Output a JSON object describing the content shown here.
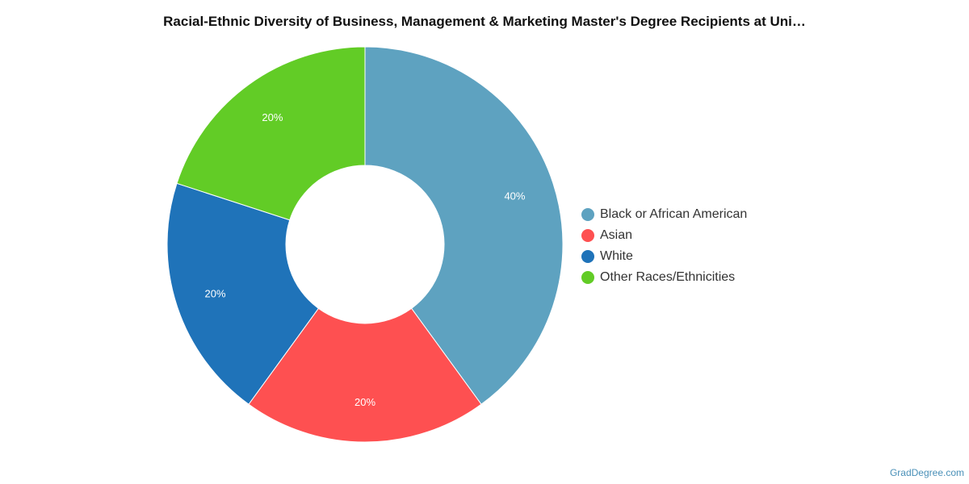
{
  "chart_data": {
    "type": "pie",
    "title": "Racial-Ethnic Diversity of Business, Management & Marketing Master's Degree Recipients at Uni…",
    "categories": [
      "Black or African American",
      "Asian",
      "White",
      "Other Races/Ethnicities"
    ],
    "values": [
      40,
      20,
      20,
      20
    ],
    "labels": [
      "40%",
      "20%",
      "20%",
      "20%"
    ],
    "colors": [
      "#5ea2c0",
      "#fe5051",
      "#1f73b9",
      "#62cc26"
    ],
    "legend_position": "right"
  },
  "watermark": "GradDegree.com"
}
